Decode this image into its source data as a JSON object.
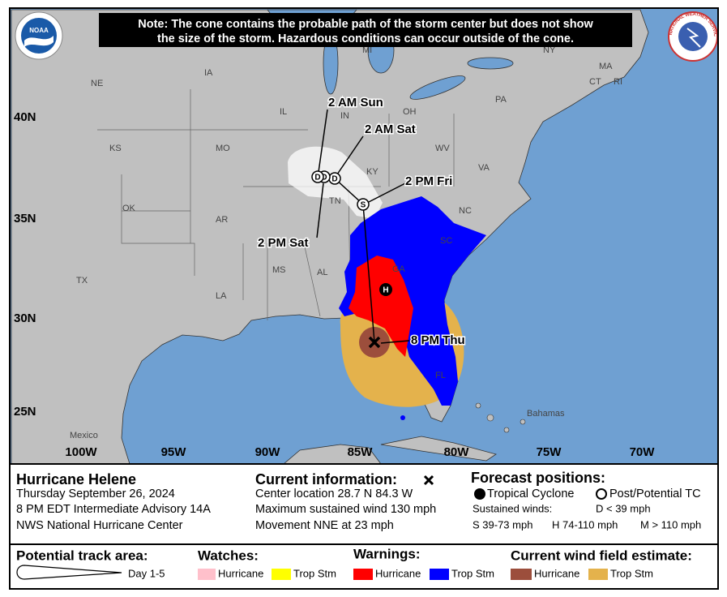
{
  "header": {
    "note_lines": [
      "Note: The cone contains the probable path of the storm center but does not show",
      "the size of the storm. Hazardous conditions can occur outside of the cone."
    ],
    "noaa_logo": "NOAA",
    "nws_logo": "NATIONAL WEATHER SERVICE"
  },
  "map": {
    "regions": [
      "NE",
      "IA",
      "IL",
      "IN",
      "OH",
      "PA",
      "MI",
      "NY",
      "MA",
      "CT",
      "RI",
      "KS",
      "MO",
      "KY",
      "WV",
      "VA",
      "TN",
      "NC",
      "OK",
      "AR",
      "SC",
      "MS",
      "AL",
      "GA",
      "TX",
      "LA",
      "FL",
      "Mexico",
      "Bahamas"
    ],
    "latitude_labels": [
      "40N",
      "35N",
      "30N",
      "25N"
    ],
    "longitude_labels": [
      "100W",
      "95W",
      "90W",
      "85W",
      "80W",
      "75W",
      "70W"
    ],
    "forecast_points": [
      {
        "label": "8 PM Thu"
      },
      {
        "label": "2 PM Fri",
        "marker": "S"
      },
      {
        "label": "2 AM Sat",
        "marker": "D"
      },
      {
        "label": "2 PM Sat",
        "marker": "D"
      },
      {
        "label": "2 AM Sun",
        "marker": "D"
      }
    ],
    "inland_marker": "H"
  },
  "info": {
    "storm": {
      "name": "Hurricane Helene",
      "lines": [
        "Thursday September 26, 2024",
        "8 PM EDT Intermediate Advisory 14A",
        "NWS National Hurricane Center"
      ]
    },
    "current": {
      "title": "Current information:",
      "lines": [
        "Center location 28.7 N 84.3 W",
        "Maximum sustained wind 130 mph",
        "Movement NNE at 23 mph"
      ]
    },
    "forecast": {
      "title": "Forecast positions:",
      "tropical_cyclone": "Tropical Cyclone",
      "post_tc": "Post/Potential TC",
      "sustained": "Sustained winds:",
      "d": "D < 39 mph",
      "s": "S 39-73 mph",
      "h": "H 74-110 mph",
      "m": "M > 110 mph"
    }
  },
  "legend": {
    "track_title": "Potential track area:",
    "track_day": "Day 1-5",
    "watches_title": "Watches:",
    "watches": [
      "Hurricane",
      "Trop Stm"
    ],
    "warnings_title": "Warnings:",
    "warnings": [
      "Hurricane",
      "Trop Stm"
    ],
    "wind_title": "Current wind field estimate:",
    "wind": [
      "Hurricane",
      "Trop Stm"
    ]
  }
}
